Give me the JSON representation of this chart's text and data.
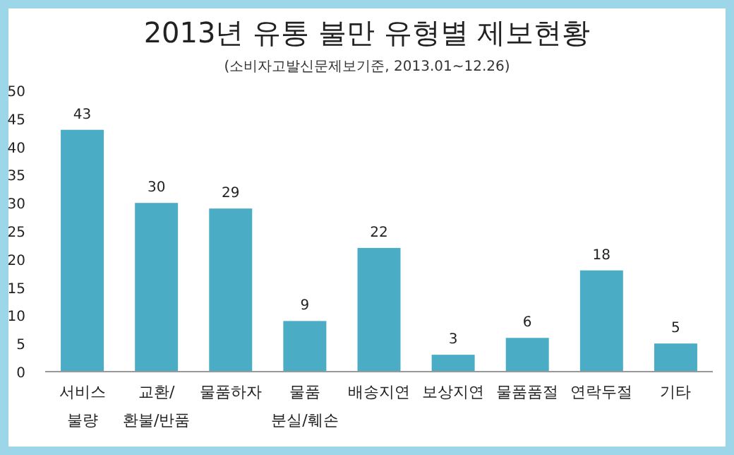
{
  "chart_data": {
    "type": "bar",
    "title": "2013년 유통 불만 유형별 제보현황",
    "subtitle": "(소비자고발신문제보기준, 2013.01~12.26)",
    "categories": [
      "서비스\n불량",
      "교환/\n환불/반품",
      "물품하자",
      "물품\n분실/훼손",
      "배송지연",
      "보상지연",
      "물품품절",
      "연락두절",
      "기타"
    ],
    "values": [
      43,
      30,
      29,
      9,
      22,
      3,
      6,
      18,
      5
    ],
    "color": "#4bacc6",
    "ylim": [
      0,
      50
    ],
    "yticks": [
      0,
      5,
      10,
      15,
      20,
      25,
      30,
      35,
      40,
      45,
      50
    ],
    "data_labels": true,
    "grid": false
  }
}
